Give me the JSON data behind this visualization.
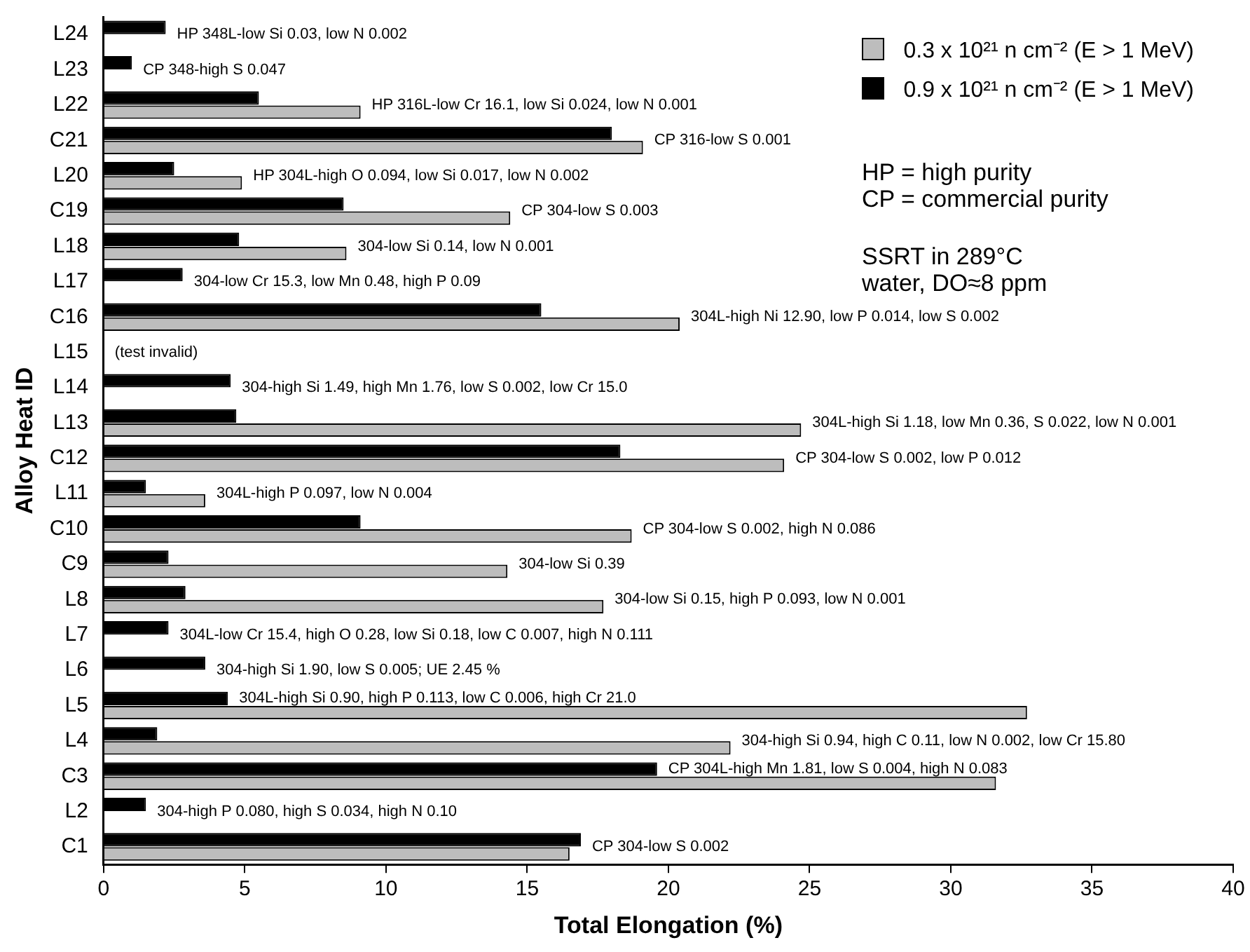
{
  "chart_data": {
    "type": "bar",
    "orientation": "horizontal",
    "xlabel": "Total Elongation (%)",
    "ylabel": "Alloy Heat ID",
    "categories": [
      "L24",
      "L23",
      "L22",
      "C21",
      "L20",
      "C19",
      "L18",
      "L17",
      "C16",
      "L15",
      "L14",
      "L13",
      "C12",
      "L11",
      "C10",
      "C9",
      "L8",
      "L7",
      "L6",
      "L5",
      "L4",
      "C3",
      "L2",
      "C1"
    ],
    "series": [
      {
        "name": "0.3 x 10²¹ n cm⁻² (E > 1 MeV)",
        "color": "#bdbdbd",
        "values": [
          null,
          null,
          9.1,
          19.1,
          4.9,
          14.4,
          8.6,
          null,
          20.4,
          null,
          null,
          24.7,
          24.1,
          3.6,
          18.7,
          14.3,
          17.7,
          null,
          null,
          32.7,
          22.2,
          31.6,
          null,
          16.5
        ]
      },
      {
        "name": "0.9 x 10²¹ n cm⁻² (E > 1 MeV)",
        "color": "#000000",
        "values": [
          2.2,
          1.0,
          5.5,
          18.0,
          2.5,
          8.5,
          4.8,
          2.8,
          15.5,
          null,
          4.5,
          4.7,
          18.3,
          1.5,
          9.1,
          2.3,
          2.9,
          2.3,
          3.6,
          4.4,
          1.9,
          19.6,
          1.5,
          16.9
        ]
      }
    ],
    "xlim": [
      0,
      40
    ],
    "xticks": [
      0,
      5,
      10,
      15,
      20,
      25,
      30,
      35,
      40
    ],
    "grid": false,
    "legend": "top right",
    "annotations": [
      "HP 348L-low Si 0.03, low N 0.002",
      "CP 348-high S 0.047",
      "HP 316L-low Cr 16.1, low Si 0.024, low N 0.001",
      "CP 316-low S 0.001",
      "HP 304L-high O 0.094, low Si 0.017, low N 0.002",
      "CP 304-low S 0.003",
      "304-low Si 0.14, low N 0.001",
      "304-low Cr 15.3, low Mn 0.48, high P 0.09",
      "304L-high Ni 12.90, low P 0.014, low S 0.002",
      "(test invalid)",
      "304-high Si 1.49, high Mn 1.76, low S 0.002, low Cr 15.0",
      "304L-high Si 1.18, low Mn 0.36, S 0.022, low N 0.001",
      "CP 304-low S 0.002, low P 0.012",
      "304L-high P 0.097, low N 0.004",
      "CP 304-low S 0.002, high N 0.086",
      "304-low Si 0.39",
      "304-low Si 0.15, high P 0.093, low N 0.001",
      "304L-low Cr 15.4, high O 0.28, low Si 0.18, low C 0.007, high N 0.111",
      "304-high Si 1.90, low S 0.005; UE 2.45 %",
      "304L-high Si 0.90, high P 0.113, low C 0.006, high Cr 21.0",
      "304-high Si 0.94, high C 0.11, low N 0.002, low Cr 15.80",
      "CP 304L-high Mn 1.81, low S 0.004, high N 0.083",
      "304-high P 0.080, high S 0.034, high N 0.10",
      "CP 304-low S 0.002",
      "HP = high purity\nCP = commercial purity",
      "SSRT in 289°C\nwater, DO≈8 ppm"
    ]
  }
}
